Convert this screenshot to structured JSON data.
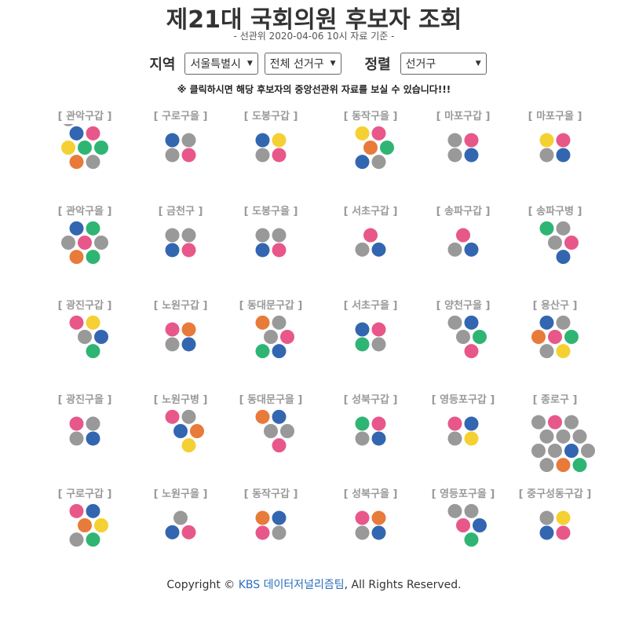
{
  "header": {
    "title": "제21대 국회의원 후보자 조회",
    "subtitle": "- 선관위 2020-04-06 10시 자료 기준 -"
  },
  "filters": {
    "region_label": "지역",
    "region": "서울특별시",
    "district": "전체 선거구",
    "sort_label": "정렬",
    "sort": "선거구"
  },
  "note": "※ 클릭하시면 해당 후보자의 중앙선관위 자료를 보실 수 있습니다!!!",
  "districts": [
    {
      "label": "[ 관악구갑 ]",
      "dots": [
        "#2fb573",
        "#3366b0",
        "#e8578a",
        "#2fb573",
        "#999999",
        "#e87a3a",
        "#f5d033",
        "#999999"
      ]
    },
    {
      "label": "[ 관악구을 ]",
      "dots": [
        "#e8578a",
        "#3366b0",
        "#2fb573",
        "#999999",
        "#2fb573",
        "#e87a3a",
        "#999999"
      ]
    },
    {
      "label": "[ 광진구갑 ]",
      "dots": [
        "#999999",
        "#e8578a",
        "#f5d033",
        "#3366b0",
        "#2fb573"
      ]
    },
    {
      "label": "[ 광진구을 ]",
      "dots": [
        "#e8578a",
        "#999999",
        "#999999",
        "#3366b0"
      ]
    },
    {
      "label": "[ 구로구갑 ]",
      "dots": [
        "#e87a3a",
        "#e8578a",
        "#3366b0",
        "#f5d033",
        "#2fb573",
        "#999999"
      ]
    },
    {
      "label": "[ 구로구을 ]",
      "dots": [
        "#3366b0",
        "#999999",
        "#999999",
        "#e8578a"
      ]
    },
    {
      "label": "[ 금천구 ]",
      "dots": [
        "#999999",
        "#999999",
        "#3366b0",
        "#e8578a"
      ]
    },
    {
      "label": "[ 노원구갑 ]",
      "dots": [
        "#e8578a",
        "#e87a3a",
        "#999999",
        "#3366b0"
      ]
    },
    {
      "label": "[ 노원구병 ]",
      "dots": [
        "#3366b0",
        "#e8578a",
        "#999999",
        "#e87a3a",
        "#f5d033"
      ]
    },
    {
      "label": "[ 노원구을 ]",
      "dots": [
        "#999999",
        "#3366b0",
        "#e8578a"
      ]
    },
    {
      "label": "[ 도봉구갑 ]",
      "dots": [
        "#3366b0",
        "#f5d033",
        "#999999",
        "#e8578a"
      ]
    },
    {
      "label": "[ 도봉구을 ]",
      "dots": [
        "#999999",
        "#999999",
        "#3366b0",
        "#e8578a"
      ]
    },
    {
      "label": "[ 동대문구갑 ]",
      "dots": [
        "#999999",
        "#e87a3a",
        "#999999",
        "#e8578a",
        "#3366b0",
        "#2fb573"
      ]
    },
    {
      "label": "[ 동대문구을 ]",
      "dots": [
        "#999999",
        "#e87a3a",
        "#3366b0",
        "#999999",
        "#e8578a"
      ]
    },
    {
      "label": "[ 동작구갑 ]",
      "dots": [
        "#e87a3a",
        "#3366b0",
        "#e8578a",
        "#999999"
      ]
    },
    {
      "label": "[ 동작구을 ]",
      "dots": [
        "#e87a3a",
        "#f5d033",
        "#e8578a",
        "#2fb573",
        "#999999",
        "#3366b0"
      ]
    },
    {
      "label": "[ 서초구갑 ]",
      "dots": [
        "#e8578a",
        "#999999",
        "#3366b0"
      ]
    },
    {
      "label": "[ 서초구을 ]",
      "dots": [
        "#3366b0",
        "#e8578a",
        "#2fb573",
        "#999999"
      ]
    },
    {
      "label": "[ 성북구갑 ]",
      "dots": [
        "#2fb573",
        "#e8578a",
        "#999999",
        "#3366b0"
      ]
    },
    {
      "label": "[ 성북구을 ]",
      "dots": [
        "#e8578a",
        "#e87a3a",
        "#999999",
        "#3366b0"
      ]
    },
    {
      "label": "[ 마포구갑 ]",
      "dots": [
        "#999999",
        "#e8578a",
        "#999999",
        "#3366b0"
      ]
    },
    {
      "label": "[ 송파구갑 ]",
      "dots": [
        "#e8578a",
        "#999999",
        "#3366b0"
      ]
    },
    {
      "label": "[ 양천구을 ]",
      "dots": [
        "#999999",
        "#999999",
        "#3366b0",
        "#2fb573",
        "#e8578a"
      ]
    },
    {
      "label": "[ 영등포구갑 ]",
      "dots": [
        "#e8578a",
        "#3366b0",
        "#999999",
        "#f5d033"
      ]
    },
    {
      "label": "[ 영등포구을 ]",
      "dots": [
        "#e8578a",
        "#999999",
        "#999999",
        "#3366b0",
        "#2fb573"
      ]
    },
    {
      "label": "[ 마포구을 ]",
      "dots": [
        "#f5d033",
        "#e8578a",
        "#999999",
        "#3366b0"
      ]
    },
    {
      "label": "[ 송파구병 ]",
      "dots": [
        "#999999",
        "#2fb573",
        "#999999",
        "#e8578a",
        "#3366b0"
      ]
    },
    {
      "label": "[ 용산구 ]",
      "dots": [
        "#e8578a",
        "#3366b0",
        "#999999",
        "#2fb573",
        "#f5d033",
        "#999999",
        "#e87a3a"
      ]
    },
    {
      "label": "[ 종로구 ]",
      "dots": [
        "#999999",
        "#999999",
        "#999999",
        "#3366b0",
        "#e87a3a",
        "#999999",
        "#999999",
        "#999999",
        "#e8578a",
        "#999999",
        "#999999",
        "#999999",
        "#2fb573"
      ]
    },
    {
      "label": "[ 중구성동구갑 ]",
      "dots": [
        "#999999",
        "#f5d033",
        "#3366b0",
        "#e8578a"
      ]
    }
  ],
  "footer": {
    "prefix": "Copyright ©",
    "link": "KBS 데이터저널리즘팀",
    "suffix": ", All Rights Reserved."
  }
}
